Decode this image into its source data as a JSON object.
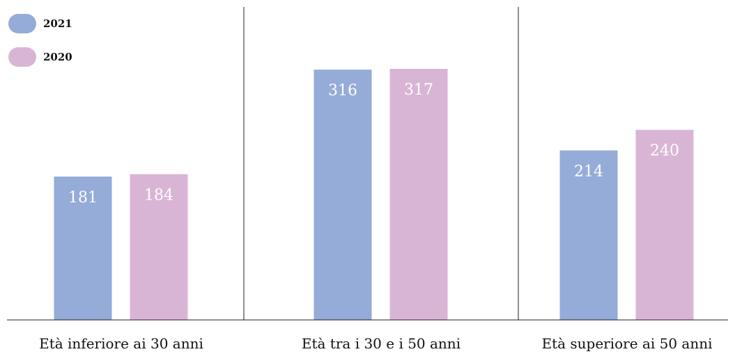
{
  "chart_data": {
    "type": "bar",
    "categories": [
      "Età inferiore ai 30 anni",
      "Età tra i 30 e i 50 anni",
      "Età superiore ai 50 anni"
    ],
    "series": [
      {
        "name": "2021",
        "values": [
          181,
          316,
          214
        ],
        "color": "#95abd8"
      },
      {
        "name": "2020",
        "values": [
          184,
          317,
          240
        ],
        "color": "#d9b5d5"
      }
    ],
    "ylim": [
      0,
      420
    ],
    "grid": false,
    "legend_position": "top-left",
    "title": "",
    "xlabel": "",
    "ylabel": ""
  }
}
